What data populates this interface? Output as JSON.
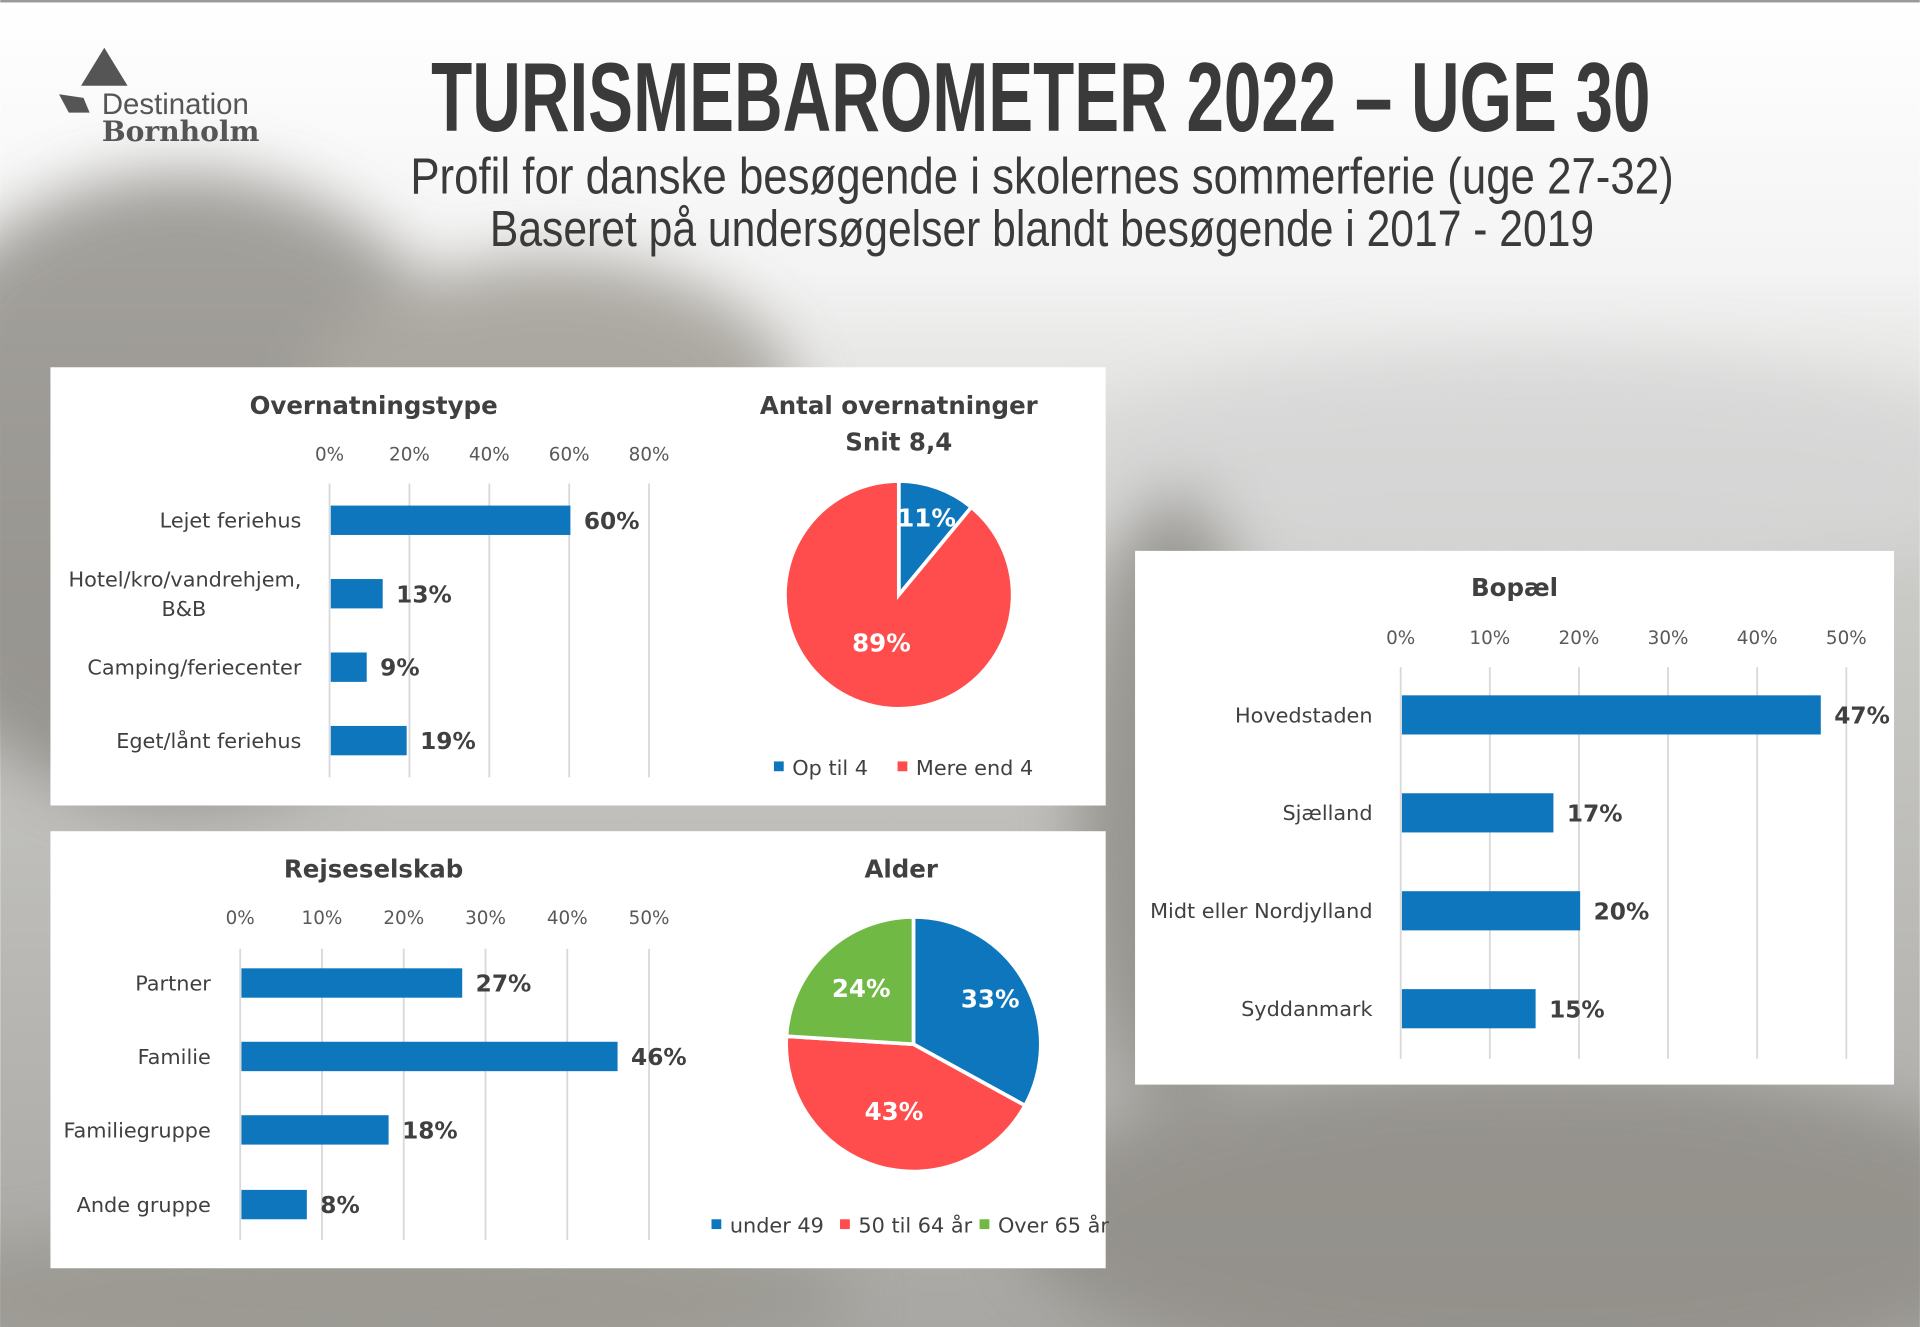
{
  "header": {
    "logo_line1": "Destination",
    "logo_line2": "Bornholm",
    "title": "TURISMEBAROMETER 2022 – UGE 30",
    "subtitle1": "Profil for danske besøgende i skolernes sommerferie (uge 27-32)",
    "subtitle2": "Baseret på undersøgelser blandt besøgende i 2017 - 2019"
  },
  "colors": {
    "blue": "#0E76BD",
    "red": "#FF4C4C",
    "green": "#70B944",
    "text": "#404040"
  },
  "chart_data": [
    {
      "id": "overnatningstype",
      "type": "bar",
      "title": "Overnatningstype",
      "categories": [
        "Lejet feriehus",
        "Hotel/kro/vandrehjem,|B&B",
        "Camping/feriecenter",
        "Eget/lånt feriehus"
      ],
      "values": [
        60,
        13,
        9,
        19
      ],
      "value_labels": [
        "60%",
        "13%",
        "9%",
        "19%"
      ],
      "ticks": [
        "0%",
        "20%",
        "40%",
        "60%",
        "80%"
      ],
      "xlim": [
        0,
        80
      ],
      "grid": true
    },
    {
      "id": "antal-overnatninger",
      "type": "pie",
      "title": "Antal overnatninger",
      "subtitle": "Snit 8,4",
      "categories": [
        "Op til 4",
        "Mere end 4"
      ],
      "values": [
        11,
        89
      ],
      "value_labels": [
        "11%",
        "89%"
      ],
      "legend": "bottom"
    },
    {
      "id": "rejseselskab",
      "type": "bar",
      "title": "Rejseselskab",
      "categories": [
        "Partner",
        "Familie",
        "Familiegruppe",
        "Ande gruppe"
      ],
      "values": [
        27,
        46,
        18,
        8
      ],
      "value_labels": [
        "27%",
        "46%",
        "18%",
        "8%"
      ],
      "ticks": [
        "0%",
        "10%",
        "20%",
        "30%",
        "40%",
        "50%"
      ],
      "xlim": [
        0,
        50
      ],
      "grid": true
    },
    {
      "id": "alder",
      "type": "pie",
      "title": "Alder",
      "categories": [
        "under 49",
        "50 til 64 år",
        "Over 65 år"
      ],
      "values": [
        33,
        43,
        24
      ],
      "value_labels": [
        "33%",
        "43%",
        "24%"
      ],
      "legend": "bottom"
    },
    {
      "id": "bopael",
      "type": "bar",
      "title": "Bopæl",
      "categories": [
        "Hovedstaden",
        "Sjælland",
        "Midt eller Nordjylland",
        "Syddanmark"
      ],
      "values": [
        47,
        17,
        20,
        15
      ],
      "value_labels": [
        "47%",
        "17%",
        "20%",
        "15%"
      ],
      "ticks": [
        "0%",
        "10%",
        "20%",
        "30%",
        "40%",
        "50%"
      ],
      "xlim": [
        0,
        50
      ],
      "grid": true
    }
  ]
}
